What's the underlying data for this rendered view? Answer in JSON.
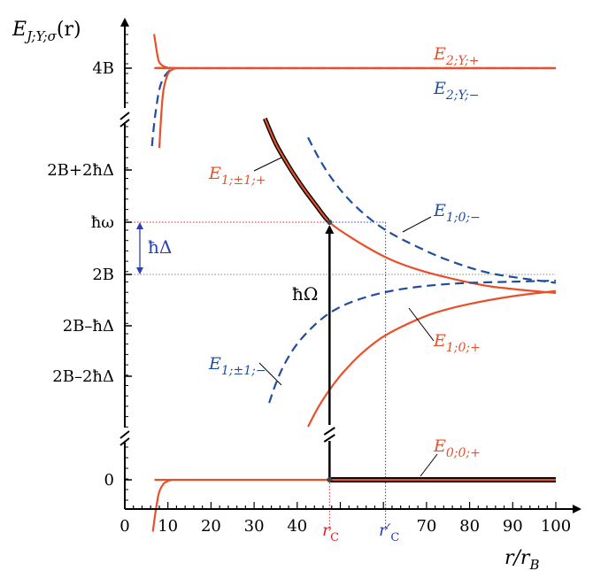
{
  "colors": {
    "red": "#e8502a",
    "blue": "#1f4e9e",
    "black": "#000000",
    "gray": "#888888",
    "dot_red": "#e0232c",
    "dot_blue": "#2a3fb5",
    "delta_arrow": "#2a3fb5"
  },
  "chart_data": {
    "type": "line",
    "xlabel": "r/r_B",
    "ylabel": "E_{J;Y;σ}(r)",
    "xlim": [
      0,
      100
    ],
    "x_ticks": [
      "0",
      "10",
      "20",
      "30",
      "40",
      "50",
      "60",
      "70",
      "80",
      "90",
      "100"
    ],
    "y_ticks": [
      "0",
      "2B–2ħΔ",
      "2B–ħΔ",
      "2B",
      "ħω",
      "2B+2ħΔ",
      "4B"
    ],
    "y_breaks": 2,
    "series": [
      {
        "name": "E_{2;Y;+}",
        "color": "red",
        "dash": "solid",
        "band": "top",
        "x": [
          6.8,
          7.5,
          8,
          9,
          10,
          11,
          12,
          14,
          100
        ],
        "y": [
          4.35,
          4.15,
          4.06,
          4.02,
          4.005,
          4,
          4,
          4,
          4
        ]
      },
      {
        "name": "E_{2;Y;−}",
        "color": "blue",
        "dash": "dashed",
        "band": "top",
        "x": [
          6.3,
          7,
          8,
          9,
          10,
          11,
          12,
          14,
          100
        ],
        "y": [
          3.2,
          3.5,
          3.78,
          3.9,
          3.96,
          3.99,
          4,
          4,
          4
        ]
      },
      {
        "name": "E_{2;Y;−} (inner)",
        "color": "red",
        "dash": "solid",
        "band": "top",
        "x": [
          8,
          8.5,
          9,
          10,
          11,
          12,
          14,
          100
        ],
        "y": [
          3.18,
          3.55,
          3.78,
          3.94,
          3.985,
          4,
          4,
          4
        ]
      },
      {
        "name": "E_{1;±1;+}",
        "color": "red",
        "dash": "solid",
        "band": "mid",
        "x": [
          32.5,
          35,
          38,
          41,
          44,
          47.5,
          52,
          57,
          62,
          68,
          75,
          85,
          100
        ],
        "y": [
          2.71,
          2.54,
          2.385,
          2.25,
          2.13,
          2,
          1.905,
          1.815,
          1.74,
          1.675,
          1.62,
          1.56,
          1.515
        ]
      },
      {
        "name": "E_{1;0;−}",
        "color": "blue",
        "dash": "dashed",
        "band": "mid",
        "x": [
          42.5,
          45,
          48,
          52,
          57,
          62,
          68,
          75,
          85,
          100
        ],
        "y": [
          2.58,
          2.44,
          2.3,
          2.155,
          2.02,
          1.92,
          1.83,
          1.74,
          1.65,
          1.585
        ]
      },
      {
        "name": "E_{1;0;+}",
        "color": "red",
        "dash": "solid",
        "band": "mid",
        "x": [
          42.5,
          45,
          48,
          51,
          55,
          60,
          66,
          72,
          80,
          90,
          100
        ],
        "y": [
          -1.41,
          -1.215,
          -1.025,
          -0.87,
          -0.7,
          -0.54,
          -0.41,
          -0.31,
          -0.225,
          -0.15,
          -0.1
        ]
      },
      {
        "name": "E_{1;±1;−}",
        "color": "blue",
        "dash": "dashed",
        "band": "mid",
        "x": [
          33.5,
          35,
          37,
          40,
          44,
          48,
          53,
          60,
          68,
          78,
          90,
          100
        ],
        "y": [
          -1.18,
          -1.0,
          -0.81,
          -0.61,
          -0.43,
          -0.3,
          -0.2,
          -0.115,
          -0.06,
          -0.025,
          -0.01,
          0
        ]
      },
      {
        "name": "E_{0;0;+}",
        "color": "red",
        "dash": "solid",
        "band": "bottom",
        "x": [
          6.5,
          7,
          7.5,
          8,
          9,
          10,
          11,
          12,
          14,
          100
        ],
        "y": [
          -0.65,
          -0.45,
          -0.28,
          -0.15,
          -0.05,
          -0.015,
          0,
          0,
          0,
          0
        ]
      }
    ],
    "annotations": {
      "vertical_arrow_label": "ħΩ",
      "delta_arrow_label": "ħΔ",
      "r_c_label": "r_C",
      "r_c_prime_label": "r′_C",
      "r_c_value": 47.5,
      "r_c_prime_value": 60.5
    }
  },
  "labels": {
    "y_axis_title": {
      "base": "E",
      "sub": "J;Y;σ",
      "suffix": "(r)"
    },
    "x_axis_title": {
      "base": "r/r",
      "sub": "B"
    },
    "E2Yplus": {
      "base": "E",
      "sub": "2;Y;+"
    },
    "E2Yminus": {
      "base": "E",
      "sub": "2;Y;−"
    },
    "E1pm1plus": {
      "base": "E",
      "sub": "1;±1;+"
    },
    "E10minus": {
      "base": "E",
      "sub": "1;0;−"
    },
    "E10plus": {
      "base": "E",
      "sub": "1;0;+"
    },
    "E1pm1minus": {
      "base": "E",
      "sub": "1;±1;−"
    },
    "E00plus": {
      "base": "E",
      "sub": "0;0;+"
    },
    "rC": {
      "base": "r",
      "sub": "C"
    },
    "rCprime": {
      "base": "r′",
      "sub": "C"
    },
    "hbarOmega": "ħΩ",
    "hbarDelta": "ħΔ"
  }
}
